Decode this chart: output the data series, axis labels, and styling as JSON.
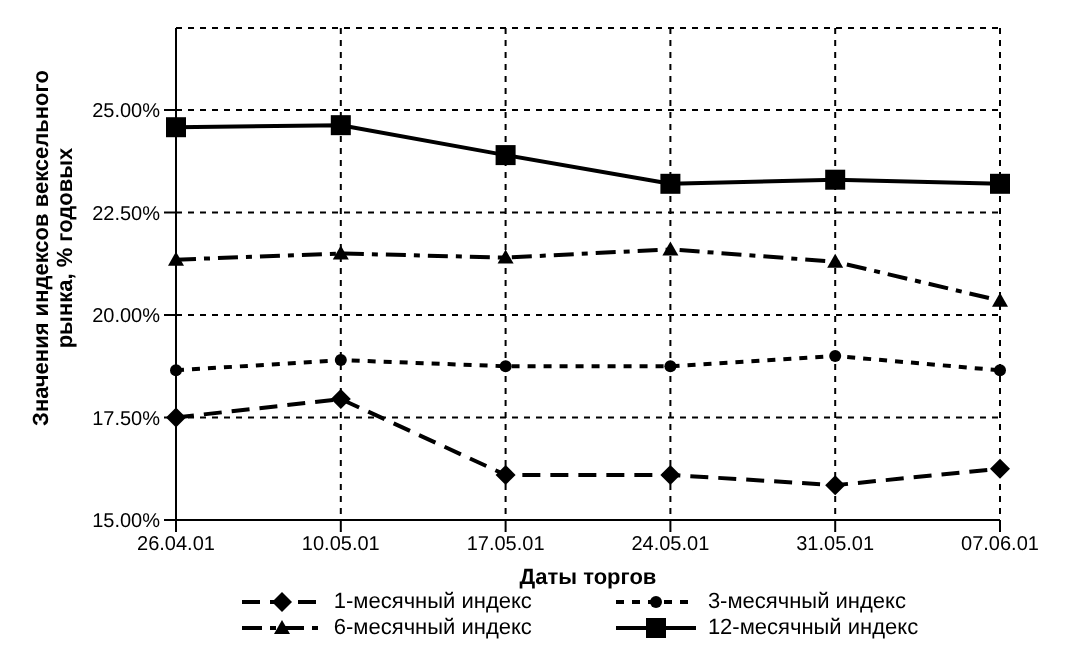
{
  "chart_data": {
    "type": "line",
    "xlabel": "Даты торгов",
    "ylabel": "Значения индексов вексельного рынка, % годовых",
    "categories": [
      "26.04.01",
      "10.05.01",
      "17.05.01",
      "24.05.01",
      "31.05.01",
      "07.06.01"
    ],
    "series": [
      {
        "name": "1-месячный индекс",
        "color": "#000000",
        "marker": "diamond",
        "line_style": "dashed",
        "values": [
          17.5,
          17.95,
          16.1,
          16.1,
          15.85,
          16.25
        ]
      },
      {
        "name": "3-месячный индекс",
        "color": "#000000",
        "marker": "circle",
        "line_style": "dotted",
        "values": [
          18.65,
          18.9,
          18.75,
          18.75,
          19.0,
          18.65
        ]
      },
      {
        "name": "6-месячный индекс",
        "color": "#000000",
        "marker": "triangle",
        "line_style": "dashdot",
        "values": [
          21.35,
          21.5,
          21.4,
          21.6,
          21.3,
          20.35
        ]
      },
      {
        "name": "12-месячный индекс",
        "color": "#000000",
        "marker": "square",
        "line_style": "solid",
        "values": [
          24.58,
          24.63,
          23.9,
          23.2,
          23.3,
          23.2
        ]
      }
    ],
    "ylim": [
      15,
      27
    ],
    "yticks": [
      {
        "value": 15,
        "label": "15.00%"
      },
      {
        "value": 17.5,
        "label": "17.50%"
      },
      {
        "value": 20,
        "label": "20.00%"
      },
      {
        "value": 22.5,
        "label": "22.50%"
      },
      {
        "value": 25,
        "label": "25.00%"
      }
    ],
    "grid": true,
    "legend": "bottom"
  }
}
